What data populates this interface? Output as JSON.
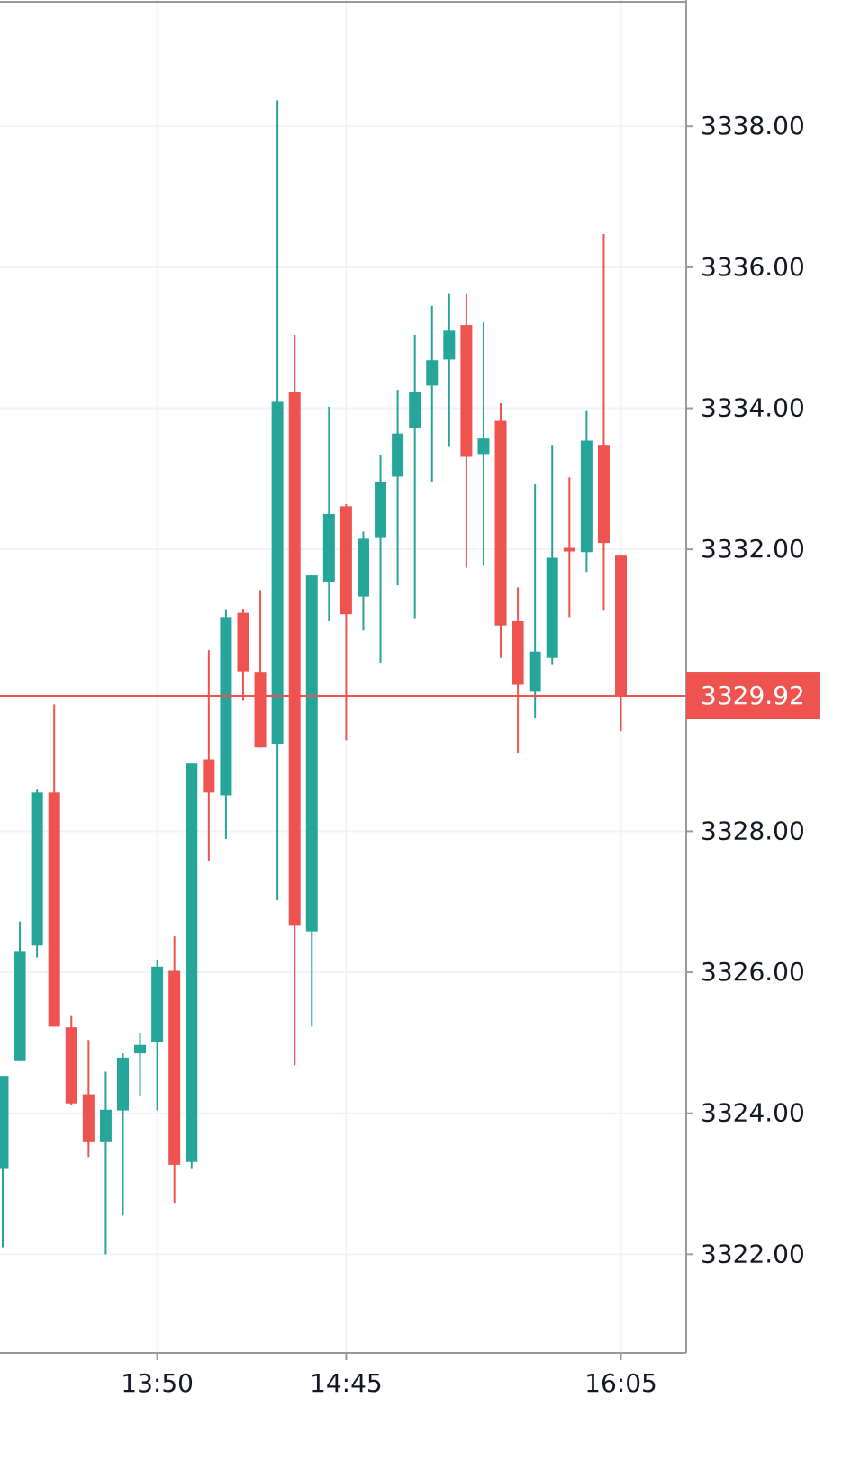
{
  "chart_data": {
    "type": "candlestick",
    "categories": [
      null,
      null,
      null,
      null,
      null,
      null,
      null,
      null,
      null,
      "13:50",
      null,
      null,
      null,
      null,
      null,
      null,
      null,
      null,
      null,
      null,
      "14:45",
      null,
      null,
      null,
      null,
      null,
      null,
      null,
      null,
      null,
      null,
      null,
      null,
      null,
      null,
      null,
      "16:05"
    ],
    "open": [
      3323.21,
      3324.74,
      3326.38,
      3328.55,
      3325.22,
      3324.27,
      3323.59,
      3324.04,
      3324.85,
      3325.01,
      3326.02,
      3323.31,
      3329.02,
      3328.51,
      3331.1,
      3330.25,
      3329.24,
      3334.23,
      3326.58,
      3331.54,
      3332.61,
      3331.33,
      3332.16,
      3333.03,
      3333.72,
      3334.32,
      3334.69,
      3335.18,
      3333.35,
      3333.82,
      3330.98,
      3329.98,
      3330.46,
      3332.02,
      3331.96,
      3333.48,
      3331.91
    ],
    "high": [
      3324.53,
      3326.72,
      3328.59,
      3329.8,
      3325.38,
      3325.04,
      3324.59,
      3324.85,
      3325.14,
      3326.17,
      3326.51,
      3328.96,
      3330.57,
      3331.14,
      3331.15,
      3331.42,
      3338.37,
      3335.04,
      3331.63,
      3334.02,
      3332.64,
      3332.25,
      3333.34,
      3334.26,
      3335.04,
      3335.45,
      3335.62,
      3335.62,
      3335.22,
      3334.07,
      3331.46,
      3332.92,
      3333.48,
      3333.02,
      3333.96,
      3336.47,
      3331.91
    ],
    "low": [
      3322.1,
      3324.74,
      3326.21,
      3325.23,
      3324.12,
      3323.38,
      3322.0,
      3322.55,
      3324.25,
      3324.04,
      3322.73,
      3323.21,
      3327.58,
      3327.89,
      3329.85,
      3329.19,
      3327.02,
      3324.68,
      3325.23,
      3330.98,
      3329.29,
      3330.85,
      3330.38,
      3331.49,
      3331.01,
      3332.96,
      3333.45,
      3331.74,
      3331.77,
      3330.46,
      3329.11,
      3329.6,
      3330.36,
      3331.04,
      3331.68,
      3331.13,
      3329.42
    ],
    "close": [
      3324.53,
      3326.29,
      3328.55,
      3325.23,
      3324.14,
      3323.59,
      3324.05,
      3324.79,
      3324.97,
      3326.08,
      3323.27,
      3328.96,
      3328.55,
      3331.04,
      3330.27,
      3329.19,
      3334.09,
      3326.66,
      3331.63,
      3332.5,
      3331.08,
      3332.15,
      3332.96,
      3333.64,
      3334.23,
      3334.68,
      3335.1,
      3333.31,
      3333.57,
      3330.92,
      3330.08,
      3330.55,
      3331.88,
      3331.97,
      3333.54,
      3332.09,
      3329.92
    ],
    "up_color": "#26a69a",
    "down_color": "#ef5350",
    "last_price": 3329.92,
    "ylim": [
      3320.6,
      3339.79
    ],
    "yticks": [
      {
        "value": 3322,
        "label": "3322.00"
      },
      {
        "value": 3324,
        "label": "3324.00"
      },
      {
        "value": 3326,
        "label": "3326.00"
      },
      {
        "value": 3328,
        "label": "3328.00"
      },
      {
        "value": 3332,
        "label": "3332.00"
      },
      {
        "value": 3334,
        "label": "3334.00"
      },
      {
        "value": 3336,
        "label": "3336.00"
      },
      {
        "value": 3338,
        "label": "3338.00"
      }
    ],
    "grid": true
  }
}
